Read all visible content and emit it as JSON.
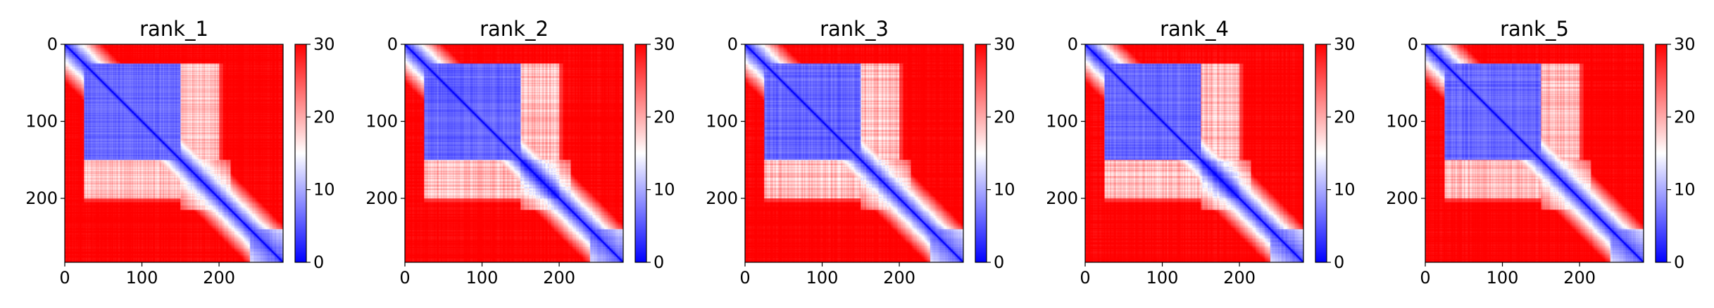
{
  "colors": {
    "low": "#0000ff",
    "mid": "#ffffff",
    "high": "#ff0000",
    "axis": "#000000"
  },
  "chart_data": [
    {
      "type": "heatmap",
      "title": "rank_1",
      "variant": 0,
      "xticks": [
        "0",
        "100",
        "200"
      ],
      "yticks": [
        "0",
        "100",
        "200"
      ],
      "cbar_ticks": [
        "0",
        "10",
        "20",
        "30"
      ],
      "xlim": [
        0,
        283
      ],
      "ylim": [
        283,
        0
      ],
      "clim": [
        0,
        30
      ],
      "colormap": "bwr",
      "matrix_size": 283
    },
    {
      "type": "heatmap",
      "title": "rank_2",
      "variant": 1,
      "xticks": [
        "0",
        "100",
        "200"
      ],
      "yticks": [
        "0",
        "100",
        "200"
      ],
      "cbar_ticks": [
        "0",
        "10",
        "20",
        "30"
      ],
      "xlim": [
        0,
        283
      ],
      "ylim": [
        283,
        0
      ],
      "clim": [
        0,
        30
      ],
      "colormap": "bwr",
      "matrix_size": 283
    },
    {
      "type": "heatmap",
      "title": "rank_3",
      "variant": 2,
      "xticks": [
        "0",
        "100",
        "200"
      ],
      "yticks": [
        "0",
        "100",
        "200"
      ],
      "cbar_ticks": [
        "0",
        "10",
        "20",
        "30"
      ],
      "xlim": [
        0,
        283
      ],
      "ylim": [
        283,
        0
      ],
      "clim": [
        0,
        30
      ],
      "colormap": "bwr",
      "matrix_size": 283
    },
    {
      "type": "heatmap",
      "title": "rank_4",
      "variant": 3,
      "xticks": [
        "0",
        "100",
        "200"
      ],
      "yticks": [
        "0",
        "100",
        "200"
      ],
      "cbar_ticks": [
        "0",
        "10",
        "20",
        "30"
      ],
      "xlim": [
        0,
        283
      ],
      "ylim": [
        283,
        0
      ],
      "clim": [
        0,
        30
      ],
      "colormap": "bwr",
      "matrix_size": 283
    },
    {
      "type": "heatmap",
      "title": "rank_5",
      "variant": 4,
      "xticks": [
        "0",
        "100",
        "200"
      ],
      "yticks": [
        "0",
        "100",
        "200"
      ],
      "cbar_ticks": [
        "0",
        "10",
        "20",
        "30"
      ],
      "xlim": [
        0,
        283
      ],
      "ylim": [
        283,
        0
      ],
      "clim": [
        0,
        30
      ],
      "colormap": "bwr",
      "matrix_size": 283
    }
  ]
}
